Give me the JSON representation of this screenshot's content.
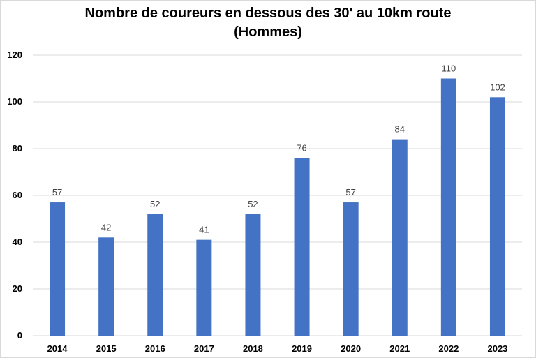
{
  "chart_data": {
    "type": "bar",
    "title": "Nombre de coureurs en dessous des 30' au 10km route",
    "subtitle": "(Hommes)",
    "categories": [
      "2014",
      "2015",
      "2016",
      "2017",
      "2018",
      "2019",
      "2020",
      "2021",
      "2022",
      "2023"
    ],
    "values": [
      57,
      42,
      52,
      41,
      52,
      76,
      57,
      84,
      110,
      102
    ],
    "ylim": [
      0,
      120
    ],
    "yticks": [
      0,
      20,
      40,
      60,
      80,
      100,
      120
    ],
    "grid": true,
    "bar_color": "#4472c4",
    "gridline_color": "#d9d9d9"
  }
}
